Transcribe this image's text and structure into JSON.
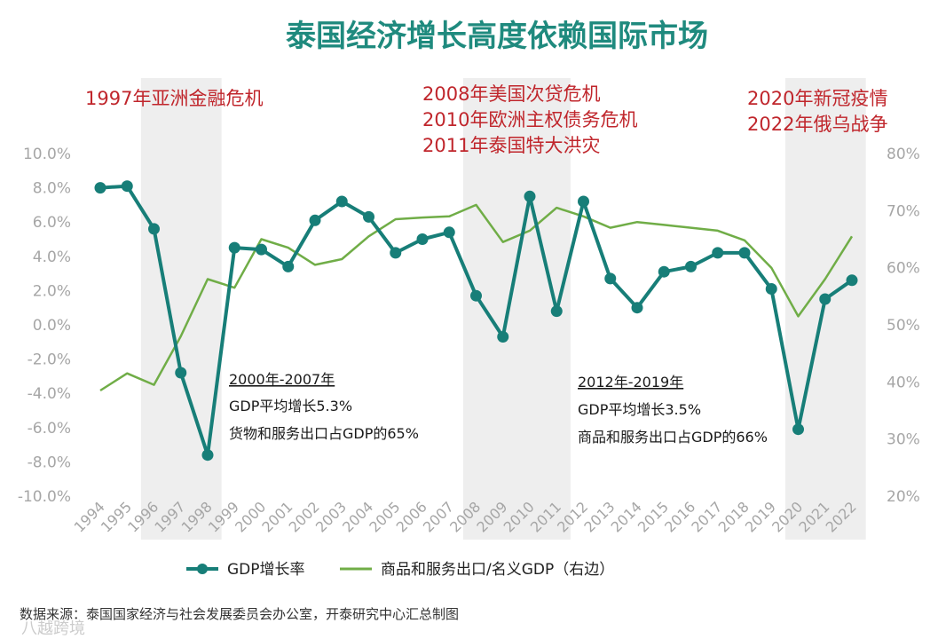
{
  "chart_data": {
    "type": "line",
    "title": "泰国经济增长高度依赖国际市场",
    "categories": [
      "1994",
      "1995",
      "1996",
      "1997",
      "1998",
      "1999",
      "2000",
      "2001",
      "2002",
      "2003",
      "2004",
      "2005",
      "2006",
      "2007",
      "2008",
      "2009",
      "2010",
      "2011",
      "2012",
      "2013",
      "2014",
      "2015",
      "2016",
      "2017",
      "2018",
      "2019",
      "2020",
      "2021",
      "2022"
    ],
    "series": [
      {
        "name": "GDP增长率",
        "axis": "left",
        "color": "#177e78",
        "markers": true,
        "values": [
          8.0,
          8.1,
          5.6,
          -2.8,
          -7.6,
          4.5,
          4.4,
          3.4,
          6.1,
          7.2,
          6.3,
          4.2,
          5.0,
          5.4,
          1.7,
          -0.7,
          7.5,
          0.8,
          7.2,
          2.7,
          1.0,
          3.1,
          3.4,
          4.2,
          4.2,
          2.1,
          -6.1,
          1.5,
          2.6
        ]
      },
      {
        "name": "商品和服务出口/名义GDP（右边）",
        "axis": "right",
        "color": "#70ad47",
        "markers": false,
        "values": [
          38.5,
          41.5,
          39.5,
          48.0,
          58.0,
          56.5,
          65.0,
          63.5,
          60.5,
          61.5,
          65.5,
          68.5,
          68.8,
          69.0,
          71.0,
          64.5,
          66.5,
          70.5,
          69.0,
          67.0,
          68.0,
          67.5,
          67.0,
          66.5,
          64.8,
          60.0,
          51.5,
          58.0,
          65.5
        ]
      }
    ],
    "y_left": {
      "min": -10,
      "max": 10,
      "tick_labels": [
        "10.0%",
        "8.0%",
        "6.0%",
        "4.0%",
        "2.0%",
        "0.0%",
        "-2.0%",
        "-4.0%",
        "-6.0%",
        "-8.0%",
        "-10.0%"
      ],
      "tick_values": [
        10,
        8,
        6,
        4,
        2,
        0,
        -2,
        -4,
        -6,
        -8,
        -10
      ]
    },
    "y_right": {
      "min": 20,
      "max": 80,
      "tick_labels": [
        "80%",
        "70%",
        "60%",
        "50%",
        "40%",
        "30%",
        "20%"
      ],
      "tick_values": [
        80,
        70,
        60,
        50,
        40,
        30,
        20
      ]
    },
    "shaded_periods": [
      {
        "from": "1996",
        "to": "1998"
      },
      {
        "from": "2008",
        "to": "2011"
      },
      {
        "from": "2020",
        "to": "2022"
      }
    ],
    "annotations": {
      "crisis_1997": [
        "1997年亚洲金融危机"
      ],
      "crisis_2008": [
        "2008年美国次贷危机",
        "2010年欧洲主权债务危机",
        "2011年泰国特大洪灾"
      ],
      "crisis_2020": [
        "2020年新冠疫情",
        "2022年俄乌战争"
      ],
      "period_2000": {
        "heading": "2000年-2007年",
        "line1": "GDP平均增长5.3%",
        "line2": "货物和服务出口占GDP的65%"
      },
      "period_2012": {
        "heading": "2012年-2019年",
        "line1": "GDP平均增长3.5%",
        "line2": "商品和服务出口占GDP的66%"
      }
    },
    "legend": {
      "position": "bottom",
      "gdp": "GDP增长率",
      "export": "商品和服务出口/名义GDP（右边）"
    }
  },
  "source": "数据来源：泰国国家经济与社会发展委员会办公室，开泰研究中心汇总制图",
  "watermark": "八越跨境",
  "colors": {
    "title": "#1f8a7e",
    "annotation": "#c0262c",
    "shade": "#eeeeee"
  }
}
